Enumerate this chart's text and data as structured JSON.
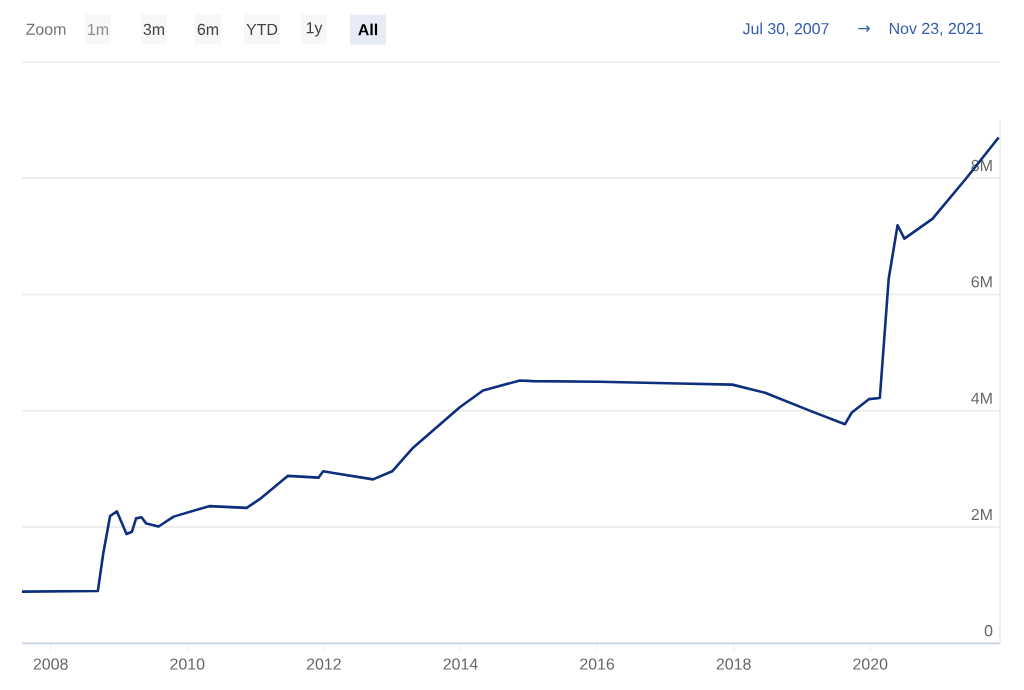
{
  "chart_data": {
    "type": "line",
    "x": [
      2007.58,
      2008.69,
      2008.77,
      2008.87,
      2008.97,
      2009.11,
      2009.19,
      2009.25,
      2009.33,
      2009.4,
      2009.58,
      2009.8,
      2010.32,
      2010.87,
      2011.06,
      2011.47,
      2011.92,
      2011.99,
      2012.14,
      2012.72,
      2013.0,
      2013.31,
      2013.99,
      2014.33,
      2014.87,
      2015.06,
      2016.03,
      2017.2,
      2017.98,
      2018.46,
      2019.14,
      2019.63,
      2019.73,
      2019.98,
      2020.14,
      2020.27,
      2020.4,
      2020.5,
      2020.91,
      2021.4,
      2021.88
    ],
    "series": [
      {
        "color": "#0d2f7e",
        "values": [
          0.89,
          0.9,
          1.55,
          2.19,
          2.27,
          1.88,
          1.92,
          2.15,
          2.17,
          2.06,
          2.01,
          2.18,
          2.36,
          2.33,
          2.48,
          2.88,
          2.85,
          2.96,
          2.93,
          2.82,
          2.96,
          3.37,
          4.06,
          4.35,
          4.52,
          4.51,
          4.5,
          4.47,
          4.45,
          4.31,
          3.99,
          3.77,
          3.97,
          4.2,
          4.22,
          6.27,
          7.19,
          6.96,
          7.3,
          7.99,
          8.7
        ]
      }
    ],
    "xlim": [
      2007.58,
      2021.9
    ],
    "ylim": [
      0,
      9.0
    ],
    "xticks": [
      2008,
      2010,
      2012,
      2014,
      2016,
      2018,
      2020
    ],
    "yticks": [
      0,
      {
        "value": 2,
        "label": "2M"
      },
      {
        "value": 4,
        "label": "4M"
      },
      {
        "value": 6,
        "label": "6M"
      },
      {
        "value": 8,
        "label": "8M"
      }
    ],
    "grid": "y",
    "marker": "none",
    "line_style": "solid",
    "annotations": [
      "Zoom",
      "1m",
      "3m",
      "6m",
      "YTD",
      "1y",
      "All",
      "Jul 30, 2007",
      "→",
      "Nov 23, 2021"
    ]
  }
}
